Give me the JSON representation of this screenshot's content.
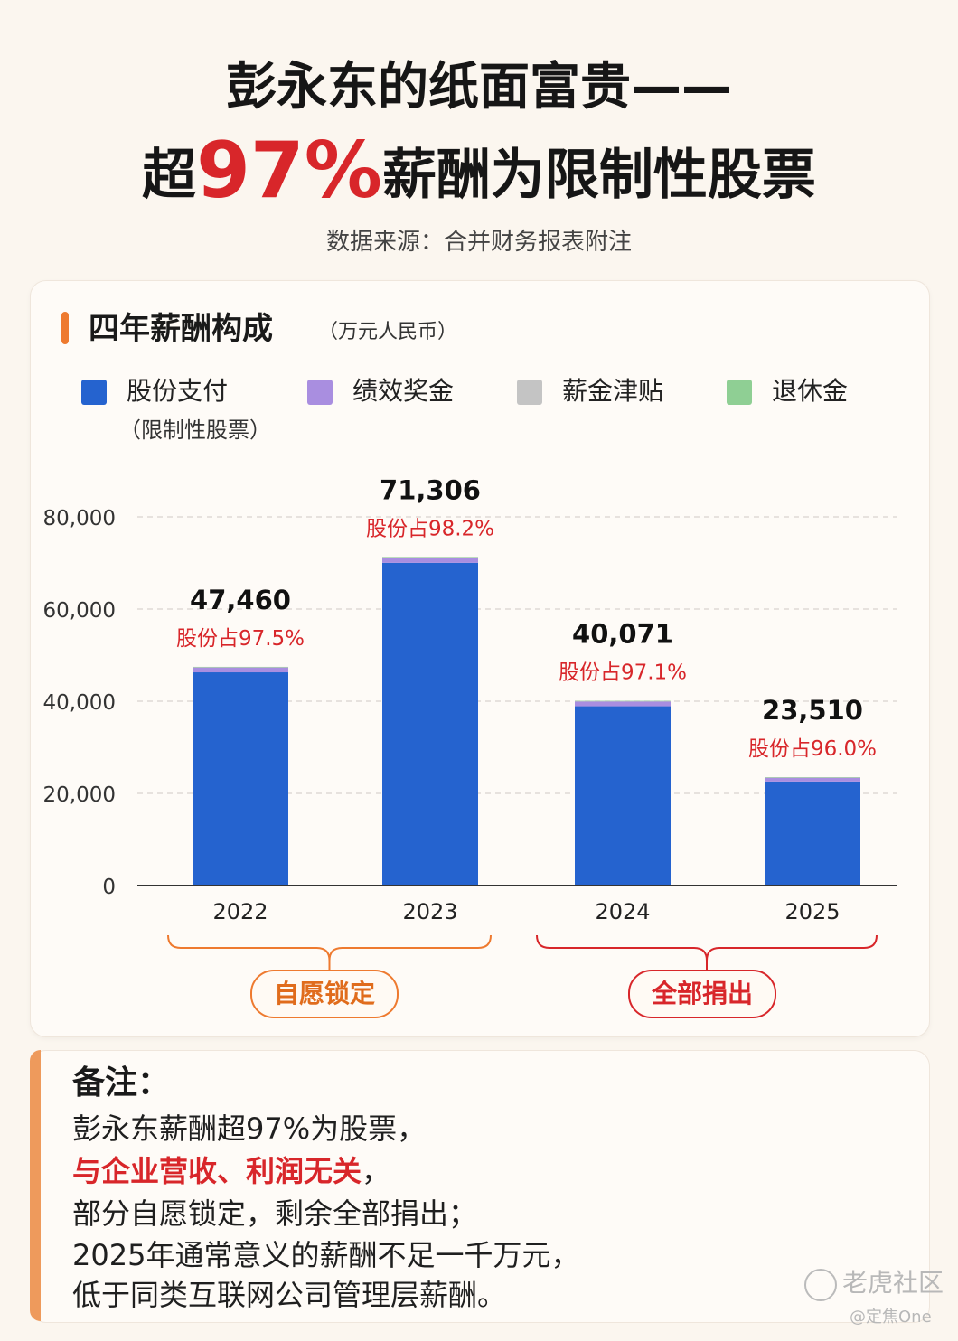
{
  "header": {
    "title_line1": "彭永东的纸面富贵——",
    "title_line2_pre": "超",
    "title_line2_highlight": "97%",
    "title_line2_post": "薪酬为限制性股票",
    "source": "数据来源：合并财务报表附注"
  },
  "card": {
    "title": "四年薪酬构成",
    "unit": "（万元人民币）"
  },
  "legend": [
    {
      "label": "股份支付",
      "sub": "（限制性股票）",
      "color": "#2563cf"
    },
    {
      "label": "绩效奖金",
      "sub": "",
      "color": "#a98ee0"
    },
    {
      "label": "薪金津贴",
      "sub": "",
      "color": "#c4c4c4"
    },
    {
      "label": "退休金",
      "sub": "",
      "color": "#8fcf94"
    }
  ],
  "chart_data": {
    "type": "bar",
    "stacked": true,
    "categories": [
      "2022",
      "2023",
      "2024",
      "2025"
    ],
    "series": [
      {
        "name": "股份支付",
        "values": [
          46272,
          70023,
          38909,
          22570
        ],
        "color": "#2563cf"
      },
      {
        "name": "绩效奖金",
        "values": [
          1050,
          1150,
          1030,
          830
        ],
        "color": "#a98ee0"
      },
      {
        "name": "薪金津贴",
        "values": [
          100,
          100,
          100,
          80
        ],
        "color": "#c4c4c4"
      },
      {
        "name": "退休金",
        "values": [
          38,
          33,
          32,
          30
        ],
        "color": "#8fcf94"
      }
    ],
    "totals": [
      "47,460",
      "71,306",
      "40,071",
      "23,510"
    ],
    "share_labels": [
      "股份占97.5%",
      "股份占98.2%",
      "股份占97.1%",
      "股份占96.0%"
    ],
    "y_ticks": [
      "0",
      "20,000",
      "40,000",
      "60,000",
      "80,000"
    ],
    "ylim": [
      0,
      80000
    ],
    "grid": true,
    "legend_position": "top"
  },
  "groups": [
    {
      "label": "自愿锁定",
      "color": "#ee7a2f"
    },
    {
      "label": "全部捐出",
      "color": "#d8262a"
    }
  ],
  "note": {
    "title": "备注：",
    "line1": "彭永东薪酬超97%为股票，",
    "line2_red": "与企业营收、利润无关",
    "line2_tail": "，",
    "line3": "部分自愿锁定，剩余全部捐出；",
    "line4": "2025年通常意义的薪酬不足一千万元，",
    "line5": "低于同类互联网公司管理层薪酬。"
  },
  "watermark": {
    "text": "老虎社区",
    "sub": "@定焦One"
  }
}
